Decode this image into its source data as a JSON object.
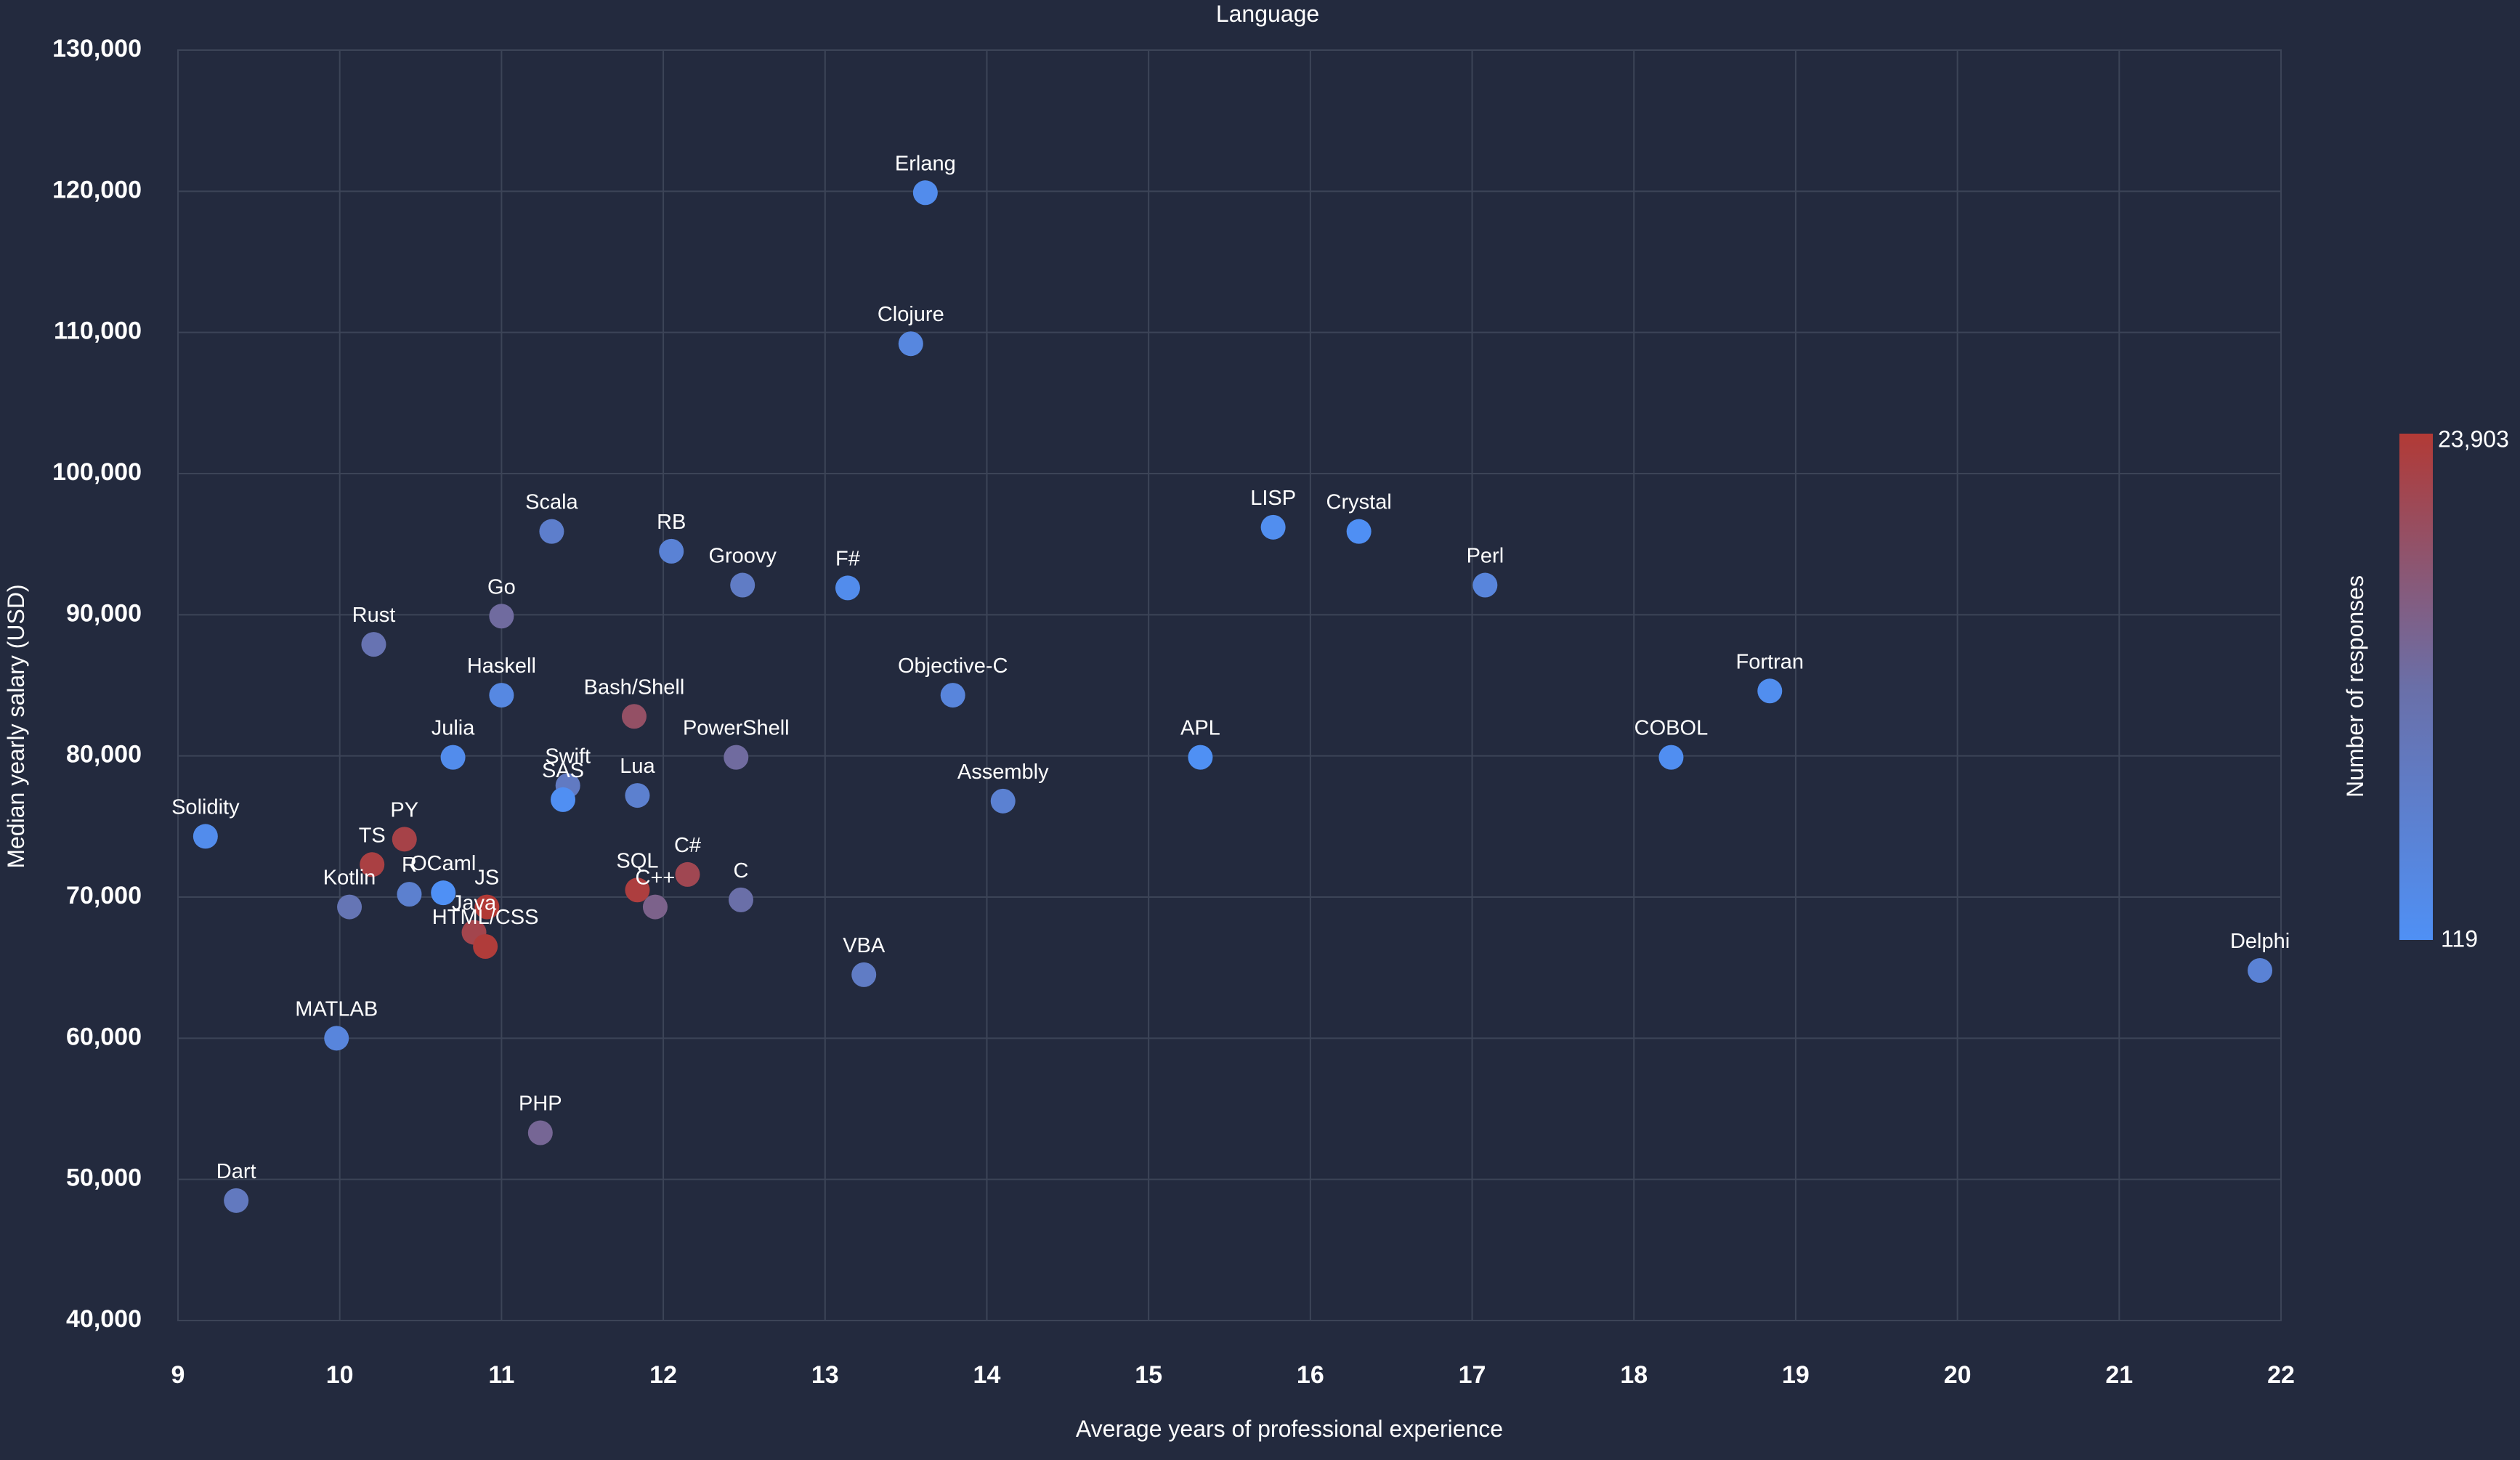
{
  "chart_data": {
    "type": "scatter",
    "title": "Language",
    "xlabel": "Average years of professional experience",
    "ylabel": "Median yearly salary (USD)",
    "xlim": [
      9,
      22
    ],
    "ylim": [
      40000,
      130000
    ],
    "x_ticks": [
      9,
      10,
      11,
      12,
      13,
      14,
      15,
      16,
      17,
      18,
      19,
      20,
      21,
      22
    ],
    "x_tick_labels": [
      "9",
      "10",
      "11",
      "12",
      "13",
      "14",
      "15",
      "16",
      "17",
      "18",
      "19",
      "20",
      "21",
      "22"
    ],
    "y_ticks": [
      40000,
      50000,
      60000,
      70000,
      80000,
      90000,
      100000,
      110000,
      120000,
      130000
    ],
    "y_tick_labels": [
      "40,000",
      "50,000",
      "60,000",
      "70,000",
      "80,000",
      "90,000",
      "100,000",
      "110,000",
      "120,000",
      "130,000"
    ],
    "grid": true,
    "colorbar": {
      "title": "Number of responses",
      "min": 119,
      "max": 23903,
      "min_label": "119",
      "max_label": "23,903",
      "low_color": "#4f90f5",
      "mid_color": "#6a6fa8",
      "high_color": "#b23a36"
    },
    "points": [
      {
        "label": "Erlang",
        "x": 13.62,
        "y": 119900,
        "responses": 1500
      },
      {
        "label": "Clojure",
        "x": 13.53,
        "y": 109200,
        "responses": 3500
      },
      {
        "label": "Scala",
        "x": 11.31,
        "y": 95900,
        "responses": 6500
      },
      {
        "label": "RB",
        "x": 12.05,
        "y": 94500,
        "responses": 5000
      },
      {
        "label": "Groovy",
        "x": 12.49,
        "y": 92100,
        "responses": 7500
      },
      {
        "label": "F#",
        "x": 13.14,
        "y": 91900,
        "responses": 1500
      },
      {
        "label": "LISP",
        "x": 15.77,
        "y": 96200,
        "responses": 1000
      },
      {
        "label": "Crystal",
        "x": 16.3,
        "y": 95900,
        "responses": 300
      },
      {
        "label": "Perl",
        "x": 17.08,
        "y": 92100,
        "responses": 4000
      },
      {
        "label": "Go",
        "x": 11.0,
        "y": 89900,
        "responses": 13000
      },
      {
        "label": "Rust",
        "x": 10.21,
        "y": 87900,
        "responses": 10500
      },
      {
        "label": "Haskell",
        "x": 11.0,
        "y": 84300,
        "responses": 3000
      },
      {
        "label": "Objective-C",
        "x": 13.79,
        "y": 84300,
        "responses": 4000
      },
      {
        "label": "Fortran",
        "x": 18.84,
        "y": 84600,
        "responses": 1000
      },
      {
        "label": "Bash/Shell",
        "x": 11.82,
        "y": 82800,
        "responses": 19000
      },
      {
        "label": "Julia",
        "x": 10.7,
        "y": 79900,
        "responses": 1500
      },
      {
        "label": "PowerShell",
        "x": 12.45,
        "y": 79900,
        "responses": 13000
      },
      {
        "label": "APL",
        "x": 15.32,
        "y": 79900,
        "responses": 200
      },
      {
        "label": "COBOL",
        "x": 18.23,
        "y": 79900,
        "responses": 700
      },
      {
        "label": "Swift",
        "x": 11.41,
        "y": 77900,
        "responses": 8000
      },
      {
        "label": "SAS",
        "x": 11.38,
        "y": 76900,
        "responses": 500
      },
      {
        "label": "Lua",
        "x": 11.84,
        "y": 77200,
        "responses": 6000
      },
      {
        "label": "Assembly",
        "x": 14.1,
        "y": 76800,
        "responses": 5500
      },
      {
        "label": "Solidity",
        "x": 9.17,
        "y": 74300,
        "responses": 1500
      },
      {
        "label": "PY",
        "x": 10.4,
        "y": 74100,
        "responses": 22000
      },
      {
        "label": "TS",
        "x": 10.2,
        "y": 72300,
        "responses": 22500
      },
      {
        "label": "C#",
        "x": 12.15,
        "y": 71600,
        "responses": 21000
      },
      {
        "label": "SQL",
        "x": 11.84,
        "y": 70500,
        "responses": 23000
      },
      {
        "label": "C++",
        "x": 11.95,
        "y": 69300,
        "responses": 15000
      },
      {
        "label": "C",
        "x": 12.48,
        "y": 69800,
        "responses": 12000
      },
      {
        "label": "Kotlin",
        "x": 10.06,
        "y": 69300,
        "responses": 10000
      },
      {
        "label": "R",
        "x": 10.43,
        "y": 70200,
        "responses": 6000
      },
      {
        "label": "OCaml",
        "x": 10.64,
        "y": 70300,
        "responses": 119
      },
      {
        "label": "JS",
        "x": 10.91,
        "y": 69300,
        "responses": 23903
      },
      {
        "label": "Java",
        "x": 10.83,
        "y": 67500,
        "responses": 21500
      },
      {
        "label": "HTML/CSS",
        "x": 10.9,
        "y": 66500,
        "responses": 23500
      },
      {
        "label": "VBA",
        "x": 13.24,
        "y": 64500,
        "responses": 7500
      },
      {
        "label": "Delphi",
        "x": 21.87,
        "y": 64800,
        "responses": 5000
      },
      {
        "label": "MATLAB",
        "x": 9.98,
        "y": 60000,
        "responses": 4000
      },
      {
        "label": "PHP",
        "x": 11.24,
        "y": 53300,
        "responses": 14000
      },
      {
        "label": "Dart",
        "x": 9.36,
        "y": 48500,
        "responses": 8500
      }
    ]
  }
}
